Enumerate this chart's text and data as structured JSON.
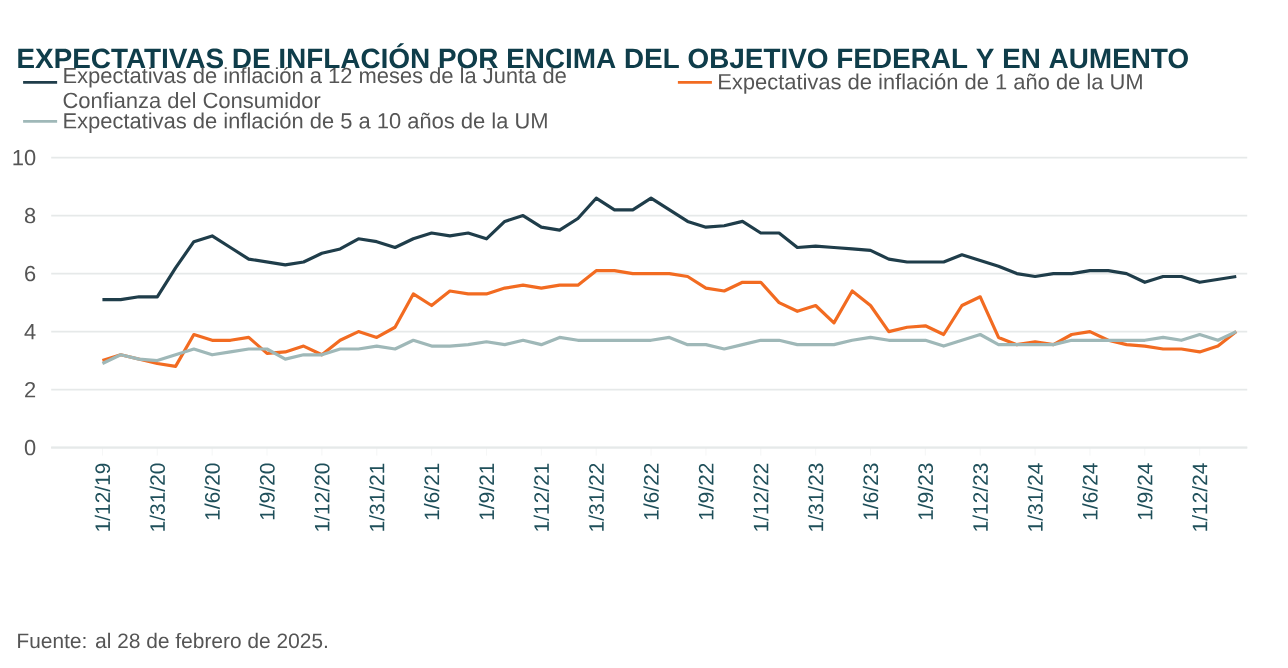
{
  "chart_data": {
    "type": "line",
    "title": "EXPECTATIVAS DE INFLACIÓN POR ENCIMA DEL OBJETIVO FEDERAL Y EN AUMENTO",
    "categories": [
      "1/12/19",
      null,
      null,
      "1/31/20",
      null,
      null,
      "1/6/20",
      null,
      null,
      "1/9/20",
      null,
      null,
      "1/12/20",
      null,
      null,
      "1/31/21",
      null,
      null,
      "1/6/21",
      null,
      null,
      "1/9/21",
      null,
      null,
      "1/12/21",
      null,
      null,
      "1/31/22",
      null,
      null,
      "1/6/22",
      null,
      null,
      "1/9/22",
      null,
      null,
      "1/12/22",
      null,
      null,
      "1/31/23",
      null,
      null,
      "1/6/23",
      null,
      null,
      "1/9/23",
      null,
      null,
      "1/12/23",
      null,
      null,
      "1/31/24",
      null,
      null,
      "1/6/24",
      null,
      null,
      "1/9/24",
      null,
      null,
      "1/12/24",
      null,
      null
    ],
    "series": [
      {
        "name": "Expectativas de inflación a 12 meses de la Junta de Confianza del Consumidor",
        "color": "#1f3d4a",
        "values": [
          5.1,
          5.1,
          5.2,
          5.2,
          6.2,
          7.1,
          7.3,
          6.9,
          6.5,
          6.4,
          6.3,
          6.4,
          6.7,
          6.85,
          7.2,
          7.1,
          6.9,
          7.2,
          7.4,
          7.3,
          7.4,
          7.2,
          7.8,
          8.0,
          7.6,
          7.5,
          7.9,
          8.6,
          8.2,
          8.2,
          8.6,
          8.2,
          7.8,
          7.6,
          7.65,
          7.8,
          7.4,
          7.4,
          6.9,
          6.95,
          6.9,
          6.85,
          6.8,
          6.5,
          6.4,
          6.4,
          6.4,
          6.65,
          6.45,
          6.25,
          6.0,
          5.9,
          6.0,
          6.0,
          6.1,
          6.1,
          6.0,
          5.7,
          5.9,
          5.9,
          5.7,
          5.8,
          5.9
        ]
      },
      {
        "name": "Expectativas de inflación de 1 año de la UM",
        "color": "#f26b21",
        "values": [
          3.0,
          3.2,
          3.05,
          2.9,
          2.8,
          3.9,
          3.7,
          3.7,
          3.8,
          3.25,
          3.3,
          3.5,
          3.2,
          3.7,
          4.0,
          3.8,
          4.15,
          5.3,
          4.9,
          5.4,
          5.3,
          5.3,
          5.5,
          5.6,
          5.5,
          5.6,
          5.6,
          6.1,
          6.1,
          6.0,
          6.0,
          6.0,
          5.9,
          5.5,
          5.4,
          5.7,
          5.7,
          5.0,
          4.7,
          4.9,
          4.3,
          5.4,
          4.9,
          4.0,
          4.15,
          4.2,
          3.9,
          4.9,
          5.2,
          3.8,
          3.55,
          3.65,
          3.55,
          3.9,
          4.0,
          3.7,
          3.55,
          3.5,
          3.4,
          3.4,
          3.3,
          3.5,
          4.0
        ]
      },
      {
        "name": "Expectativas de inflación de 5 a 10 años de la UM",
        "color": "#9fb8b8",
        "values": [
          2.9,
          3.2,
          3.05,
          3.0,
          3.2,
          3.4,
          3.2,
          3.3,
          3.4,
          3.4,
          3.05,
          3.2,
          3.2,
          3.4,
          3.4,
          3.5,
          3.4,
          3.7,
          3.5,
          3.5,
          3.55,
          3.65,
          3.55,
          3.7,
          3.55,
          3.8,
          3.7,
          3.7,
          3.7,
          3.7,
          3.7,
          3.8,
          3.55,
          3.55,
          3.4,
          3.55,
          3.7,
          3.7,
          3.55,
          3.55,
          3.55,
          3.7,
          3.8,
          3.7,
          3.7,
          3.7,
          3.5,
          3.7,
          3.9,
          3.55,
          3.55,
          3.55,
          3.55,
          3.7,
          3.7,
          3.7,
          3.7,
          3.7,
          3.8,
          3.7,
          3.9,
          3.7,
          4.0
        ]
      }
    ],
    "ylim": [
      0,
      10
    ],
    "yticks": [
      0,
      2,
      4,
      6,
      8,
      10
    ],
    "grid": "y",
    "legend": "top",
    "marker": "none",
    "line_style": "solid",
    "annotations": [
      "Fuente: al 28 de febrero de 2025."
    ]
  }
}
